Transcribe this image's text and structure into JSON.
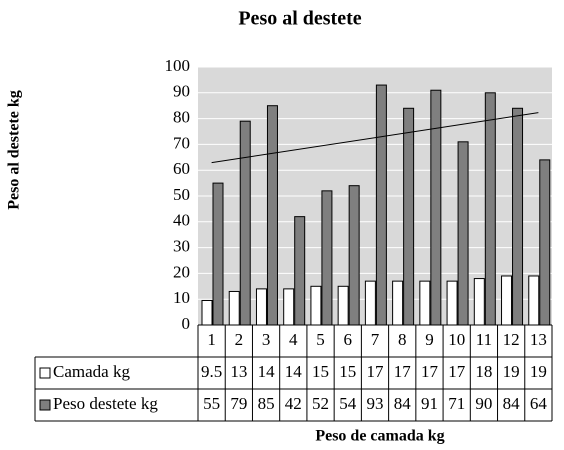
{
  "chart_data": {
    "type": "bar",
    "title": "Peso al destete",
    "y_label": "Peso al destete kg",
    "x_label": "Peso de camada kg",
    "categories": [
      "1",
      "2",
      "3",
      "4",
      "5",
      "6",
      "7",
      "8",
      "9",
      "10",
      "11",
      "12",
      "13"
    ],
    "series": [
      {
        "name": "Camada kg",
        "color": "#ffffff",
        "values": [
          9.5,
          13,
          14,
          14,
          15,
          15,
          17,
          17,
          17,
          17,
          18,
          19,
          19
        ]
      },
      {
        "name": "Peso destete kg",
        "color": "#7f7f7f",
        "values": [
          55,
          79,
          85,
          42,
          52,
          54,
          93,
          84,
          91,
          71,
          90,
          84,
          64
        ]
      }
    ],
    "ylim": [
      0,
      100
    ],
    "yticks": [
      0,
      10,
      20,
      30,
      40,
      50,
      60,
      70,
      80,
      90,
      100
    ],
    "grid": true,
    "trendline": "linear",
    "data_table": true
  }
}
